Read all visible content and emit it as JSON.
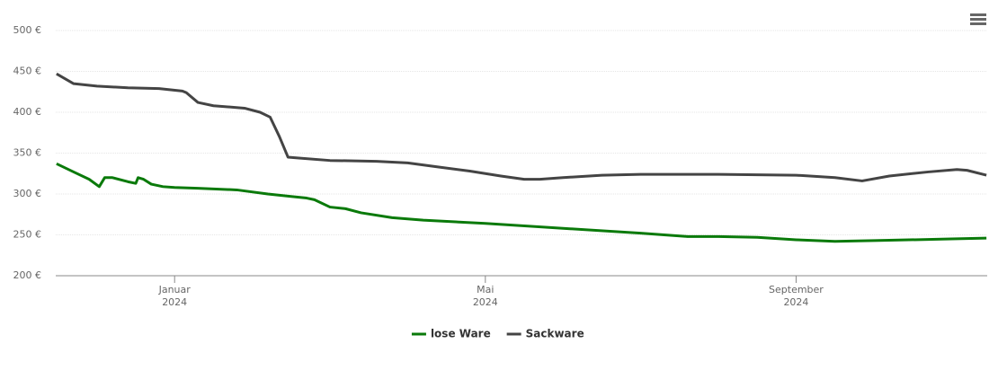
{
  "chart_data": {
    "type": "line",
    "x": [],
    "series": [
      {
        "name": "lose Ware",
        "color": "#0a7a0a",
        "x": [
          -1.52,
          -1.3,
          -1.1,
          -0.97,
          -0.9,
          -0.8,
          -0.6,
          -0.5,
          -0.47,
          -0.4,
          -0.3,
          -0.15,
          0,
          0.3,
          0.8,
          1.2,
          1.5,
          1.7,
          1.8,
          2.0,
          2.2,
          2.4,
          2.8,
          3.2,
          4.0,
          5.0,
          6.0,
          6.3,
          6.6,
          7.0,
          7.5,
          8.0,
          8.5,
          9.0,
          10.0,
          10.45
        ],
        "values": [
          337,
          327,
          318,
          309,
          320,
          320,
          315,
          313,
          320,
          318,
          312,
          309,
          308,
          307,
          305,
          300,
          297,
          295,
          293,
          284,
          282,
          277,
          271,
          268,
          264,
          258,
          252,
          250,
          248,
          248,
          247,
          244,
          242,
          243,
          245,
          246
        ]
      },
      {
        "name": "Sackware",
        "color": "#444444",
        "x": [
          -1.52,
          -1.3,
          -1.0,
          -0.6,
          -0.2,
          0.1,
          0.15,
          0.3,
          0.5,
          0.9,
          1.1,
          1.23,
          1.35,
          1.46,
          1.6,
          2.0,
          2.6,
          3.0,
          3.4,
          3.8,
          4.2,
          4.5,
          4.7,
          5.0,
          5.5,
          6.0,
          7.0,
          8.0,
          8.5,
          8.85,
          9.2,
          9.7,
          10.07,
          10.2,
          10.45
        ],
        "values": [
          447,
          435,
          432,
          430,
          429,
          426,
          424,
          412,
          408,
          405,
          400,
          394,
          370,
          345,
          344,
          341,
          340,
          338,
          333,
          328,
          322,
          318,
          318,
          320,
          323,
          324,
          324,
          323,
          320,
          316,
          322,
          327,
          330,
          329,
          323
        ]
      }
    ],
    "xlim": [
      -1.53,
      10.46
    ],
    "xticks": [
      {
        "value": 0,
        "label": [
          "Januar",
          "2024"
        ]
      },
      {
        "value": 4,
        "label": [
          "Mai",
          "2024"
        ]
      },
      {
        "value": 8,
        "label": [
          "September",
          "2024"
        ]
      }
    ],
    "ylim": [
      200,
      500
    ],
    "yticks": [
      {
        "value": 200,
        "label": "200 €"
      },
      {
        "value": 250,
        "label": "250 €"
      },
      {
        "value": 300,
        "label": "300 €"
      },
      {
        "value": 350,
        "label": "350 €"
      },
      {
        "value": 400,
        "label": "400 €"
      },
      {
        "value": 450,
        "label": "450 €"
      },
      {
        "value": 500,
        "label": "500 €"
      }
    ],
    "grid": true,
    "legend": "bottom"
  }
}
